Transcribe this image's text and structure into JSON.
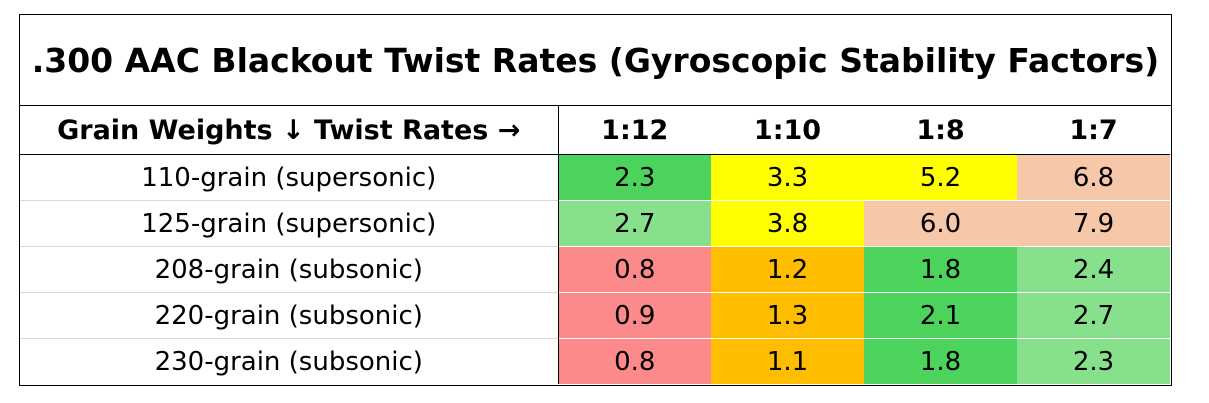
{
  "chart_data": {
    "type": "table",
    "title": ".300 AAC Blackout Twist Rates (Gyroscopic Stability Factors)",
    "corner_header": "Grain Weights ↓ Twist Rates →",
    "columns": [
      "1:12",
      "1:10",
      "1:8",
      "1:7"
    ],
    "rows": [
      {
        "label": "110-grain (supersonic)",
        "values": [
          "2.3",
          "3.3",
          "5.2",
          "6.8"
        ]
      },
      {
        "label": "125-grain (supersonic)",
        "values": [
          "2.7",
          "3.8",
          "6.0",
          "7.9"
        ]
      },
      {
        "label": "208-grain (subsonic)",
        "values": [
          "0.8",
          "1.2",
          "1.8",
          "2.4"
        ]
      },
      {
        "label": "220-grain (subsonic)",
        "values": [
          "0.9",
          "1.3",
          "2.1",
          "2.7"
        ]
      },
      {
        "label": "230-grain (subsonic)",
        "values": [
          "0.8",
          "1.1",
          "1.8",
          "2.3"
        ]
      }
    ],
    "cell_colors": [
      [
        "#4cd35c",
        "#ffff00",
        "#ffff00",
        "#f6c7a8"
      ],
      [
        "#86e08c",
        "#ffff00",
        "#f6c7a8",
        "#f6c7a8"
      ],
      [
        "#fd8a8a",
        "#ffbd00",
        "#4cd35c",
        "#86e08c"
      ],
      [
        "#fd8a8a",
        "#ffbd00",
        "#4cd35c",
        "#86e08c"
      ],
      [
        "#fd8a8a",
        "#ffbd00",
        "#4cd35c",
        "#86e08c"
      ]
    ]
  }
}
